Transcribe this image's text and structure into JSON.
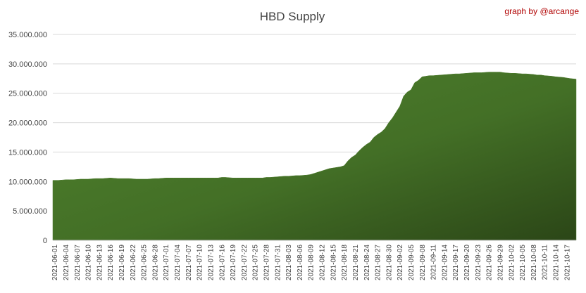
{
  "chart_data": {
    "type": "area",
    "title": "HBD Supply",
    "annotation": "graph by @arcange",
    "color": "#4a7a2a",
    "grid": true,
    "categories": [
      "2021-06-01",
      null,
      null,
      "2021-06-04",
      null,
      null,
      "2021-06-07",
      null,
      null,
      "2021-06-10",
      null,
      null,
      "2021-06-13",
      null,
      null,
      "2021-06-16",
      null,
      null,
      "2021-06-19",
      null,
      null,
      "2021-06-22",
      null,
      null,
      "2021-06-25",
      null,
      null,
      "2021-06-28",
      null,
      null,
      "2021-07-01",
      null,
      null,
      "2021-07-04",
      null,
      null,
      "2021-07-07",
      null,
      null,
      "2021-07-10",
      null,
      null,
      "2021-07-13",
      null,
      null,
      "2021-07-16",
      null,
      null,
      "2021-07-19",
      null,
      null,
      "2021-07-22",
      null,
      null,
      "2021-07-25",
      null,
      null,
      "2021-07-28",
      null,
      null,
      "2021-07-31",
      null,
      null,
      "2021-08-03",
      null,
      null,
      "2021-08-06",
      null,
      null,
      "2021-08-09",
      null,
      null,
      "2021-08-12",
      null,
      null,
      "2021-08-15",
      null,
      null,
      "2021-08-18",
      null,
      null,
      "2021-08-21",
      null,
      null,
      "2021-08-24",
      null,
      null,
      "2021-08-27",
      null,
      null,
      "2021-08-30",
      null,
      null,
      "2021-09-02",
      null,
      null,
      "2021-09-05",
      null,
      null,
      "2021-09-08",
      null,
      null,
      "2021-09-11",
      null,
      null,
      "2021-09-14",
      null,
      null,
      "2021-09-17",
      null,
      null,
      "2021-09-20",
      null,
      null,
      "2021-09-23",
      null,
      null,
      "2021-09-26",
      null,
      null,
      "2021-09-29",
      null,
      null,
      "2021-10-02",
      null,
      null,
      "2021-10-05",
      null,
      null,
      "2021-10-08",
      null,
      null,
      "2021-10-11",
      null,
      null,
      "2021-10-14",
      null,
      null,
      "2021-10-17",
      null,
      null
    ],
    "values": [
      10200000,
      10200000,
      10250000,
      10300000,
      10300000,
      10300000,
      10350000,
      10400000,
      10400000,
      10400000,
      10450000,
      10500000,
      10500000,
      10500000,
      10550000,
      10600000,
      10550000,
      10500000,
      10500000,
      10500000,
      10500000,
      10450000,
      10400000,
      10400000,
      10400000,
      10400000,
      10450000,
      10500000,
      10500000,
      10550000,
      10600000,
      10600000,
      10600000,
      10600000,
      10600000,
      10600000,
      10600000,
      10600000,
      10600000,
      10600000,
      10600000,
      10600000,
      10600000,
      10600000,
      10600000,
      10700000,
      10700000,
      10650000,
      10600000,
      10600000,
      10600000,
      10600000,
      10600000,
      10600000,
      10600000,
      10600000,
      10600000,
      10700000,
      10700000,
      10750000,
      10800000,
      10850000,
      10900000,
      10900000,
      10950000,
      11000000,
      11000000,
      11050000,
      11100000,
      11200000,
      11400000,
      11600000,
      11800000,
      12000000,
      12200000,
      12300000,
      12400000,
      12500000,
      12700000,
      13500000,
      14100000,
      14500000,
      15200000,
      15800000,
      16300000,
      16700000,
      17500000,
      18000000,
      18400000,
      19000000,
      20000000,
      20800000,
      21800000,
      22800000,
      24500000,
      25200000,
      25600000,
      26800000,
      27200000,
      27800000,
      27900000,
      28000000,
      28000000,
      28050000,
      28100000,
      28150000,
      28200000,
      28250000,
      28300000,
      28300000,
      28350000,
      28400000,
      28450000,
      28500000,
      28500000,
      28500000,
      28550000,
      28600000,
      28600000,
      28600000,
      28600000,
      28500000,
      28450000,
      28400000,
      28400000,
      28350000,
      28300000,
      28300000,
      28250000,
      28200000,
      28100000,
      28100000,
      28000000,
      27950000,
      27900000,
      27800000,
      27750000,
      27700000,
      27600000,
      27500000,
      27400000
    ],
    "ylim": [
      0,
      35000000
    ],
    "yticks": [
      0,
      {
        "value": 5000000,
        "label": "5.000.000"
      },
      {
        "value": 10000000,
        "label": "10.000.000"
      },
      {
        "value": 15000000,
        "label": "15.000.000"
      },
      {
        "value": 20000000,
        "label": "20.000.000"
      },
      {
        "value": 25000000,
        "label": "25.000.000"
      },
      {
        "value": 30000000,
        "label": "30.000.000"
      },
      {
        "value": 35000000,
        "label": "35.000.000"
      }
    ]
  }
}
